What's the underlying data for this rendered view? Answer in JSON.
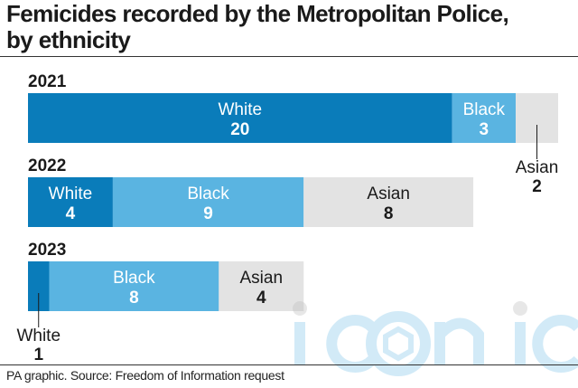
{
  "title_line1": "Femicides recorded by the Metropolitan Police,",
  "title_line2": "by ethnicity",
  "source": "PA graphic. Source: Freedom of Information request",
  "watermark": "iconic",
  "colors": {
    "White": "#0a7cba",
    "Black": "#5ab4e1",
    "Asian": "#e3e3e3"
  },
  "chart_data": {
    "type": "bar",
    "orientation": "horizontal-stacked",
    "categories": [
      "2021",
      "2022",
      "2023"
    ],
    "series": [
      {
        "name": "White",
        "values": [
          20,
          4,
          1
        ]
      },
      {
        "name": "Black",
        "values": [
          3,
          9,
          8
        ]
      },
      {
        "name": "Asian",
        "values": [
          2,
          8,
          4
        ]
      }
    ],
    "title": "Femicides recorded by the Metropolitan Police, by ethnicity",
    "grid": false,
    "legend": "none"
  }
}
